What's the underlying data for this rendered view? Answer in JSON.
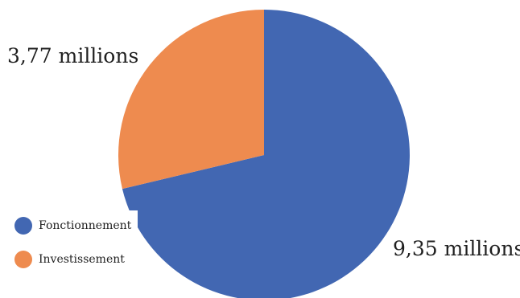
{
  "chart_data": {
    "type": "pie",
    "categories": [
      "Fonctionnement",
      "Investissement"
    ],
    "values": [
      9.35,
      3.77
    ],
    "data_labels": [
      "9,35 millions",
      "3,77 millions"
    ],
    "colors": [
      "#4267b2",
      "#ee8b4f"
    ],
    "legend": "bottom-left",
    "title": ""
  }
}
